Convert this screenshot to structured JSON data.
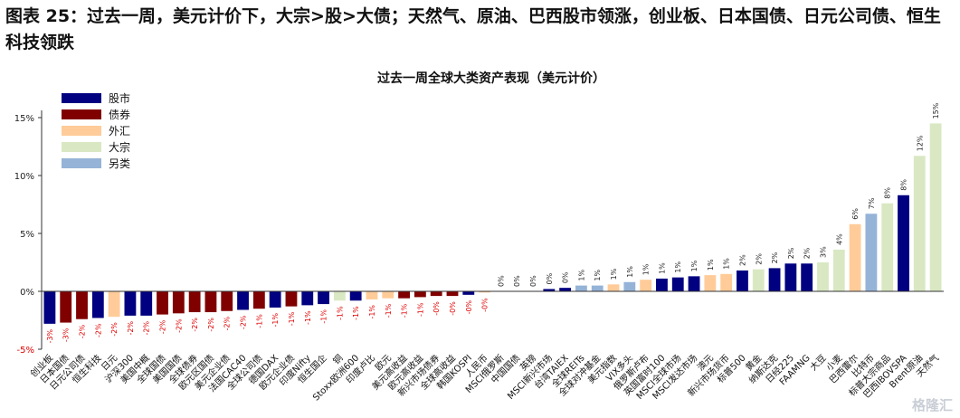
{
  "headline": "图表 25：过去一周，美元计价下，大宗>股>大债；天然气、原油、巴西股市领涨，创业板、日本国债、日元公司债、恒生科技领跌",
  "watermark": "格隆汇",
  "chart_data": {
    "type": "bar",
    "title": "过去一周全球大类资产表现（美元计价）",
    "xlabel": "",
    "ylabel": "",
    "ylim": [
      -0.05,
      0.15
    ],
    "yticks": [
      -0.05,
      0,
      0.05,
      0.1,
      0.15
    ],
    "ytick_labels": [
      "-5%",
      "0%",
      "5%",
      "10%",
      "15%"
    ],
    "grid": false,
    "legend_position": "top-left",
    "colors": {
      "股市": "#000080",
      "债券": "#800000",
      "外汇": "#ffcc99",
      "大宗": "#d9e8c3",
      "另类": "#95b3d7",
      "label_negative": "#e00000",
      "label_positive": "#222222"
    },
    "legend": [
      "股市",
      "债券",
      "外汇",
      "大宗",
      "另类"
    ],
    "categories": [
      "创业板",
      "日本国债",
      "日元公司债",
      "恒生科技",
      "日元",
      "沪深300",
      "美国中概",
      "全球国债",
      "美国国债",
      "全球债券",
      "欧元区国债",
      "美元企业债",
      "法国CAC40",
      "全球公司债",
      "德国DAX",
      "欧元企业债",
      "印度Nifty",
      "恒生国企",
      "铜",
      "Stoxx欧洲600",
      "印度卢比",
      "欧元",
      "美元高收益",
      "欧元高收益",
      "新兴市场债券",
      "全球高收益",
      "韩国KOSPI",
      "人民币",
      "MSCI俄罗斯",
      "中国国债",
      "英镑",
      "MSCI新兴市场",
      "台湾TAIEX",
      "全球REITs",
      "全球对冲基金",
      "美元指数",
      "VIX多头",
      "俄罗斯卢布",
      "英国富时100",
      "MSCI全球市场",
      "MSCI发达市场",
      "澳元",
      "新兴市场货币",
      "标普500",
      "黄金",
      "纳斯达克",
      "日经225",
      "FAAMNG",
      "大豆",
      "小麦",
      "巴西雷尔",
      "比特币",
      "标普大宗商品",
      "巴西IBOVSPA",
      "Brent原油",
      "天然气"
    ],
    "groups": [
      "股市",
      "债券",
      "债券",
      "股市",
      "外汇",
      "股市",
      "股市",
      "债券",
      "债券",
      "债券",
      "债券",
      "债券",
      "股市",
      "债券",
      "股市",
      "债券",
      "股市",
      "股市",
      "大宗",
      "股市",
      "外汇",
      "外汇",
      "债券",
      "债券",
      "债券",
      "债券",
      "股市",
      "外汇",
      "股市",
      "债券",
      "外汇",
      "股市",
      "股市",
      "另类",
      "另类",
      "外汇",
      "另类",
      "外汇",
      "股市",
      "股市",
      "股市",
      "外汇",
      "外汇",
      "股市",
      "大宗",
      "股市",
      "股市",
      "股市",
      "大宗",
      "大宗",
      "外汇",
      "另类",
      "大宗",
      "股市",
      "大宗",
      "大宗"
    ],
    "values": [
      -0.028,
      -0.027,
      -0.024,
      -0.023,
      -0.022,
      -0.021,
      -0.021,
      -0.02,
      -0.019,
      -0.018,
      -0.018,
      -0.017,
      -0.016,
      -0.015,
      -0.014,
      -0.013,
      -0.012,
      -0.011,
      -0.008,
      -0.008,
      -0.007,
      -0.006,
      -0.006,
      -0.005,
      -0.004,
      -0.004,
      -0.003,
      -0.001,
      0.0,
      0.0,
      0.0,
      0.002,
      0.003,
      0.005,
      0.005,
      0.006,
      0.008,
      0.01,
      0.011,
      0.012,
      0.013,
      0.014,
      0.015,
      0.018,
      0.019,
      0.02,
      0.024,
      0.024,
      0.025,
      0.036,
      0.058,
      0.067,
      0.076,
      0.083,
      0.117,
      0.145
    ],
    "data_labels": [
      "-3%",
      "-3%",
      "-2%",
      "-2%",
      "-2%",
      "-2%",
      "-2%",
      "-2%",
      "-2%",
      "-2%",
      "-2%",
      "-2%",
      "-2%",
      "-1%",
      "-1%",
      "-1%",
      "-1%",
      "-1%",
      "-1%",
      "-1%",
      "-1%",
      "-1%",
      "-1%",
      "-1%",
      "-0%",
      "-0%",
      "-0%",
      "-0%",
      "0%",
      "0%",
      "0%",
      "0%",
      "0%",
      "1%",
      "1%",
      "1%",
      "1%",
      "1%",
      "1%",
      "1%",
      "1%",
      "1%",
      "1%",
      "2%",
      "2%",
      "2%",
      "2%",
      "2%",
      "3%",
      "4%",
      "6%",
      "7%",
      "8%",
      "8%",
      "12%",
      "15%"
    ]
  }
}
